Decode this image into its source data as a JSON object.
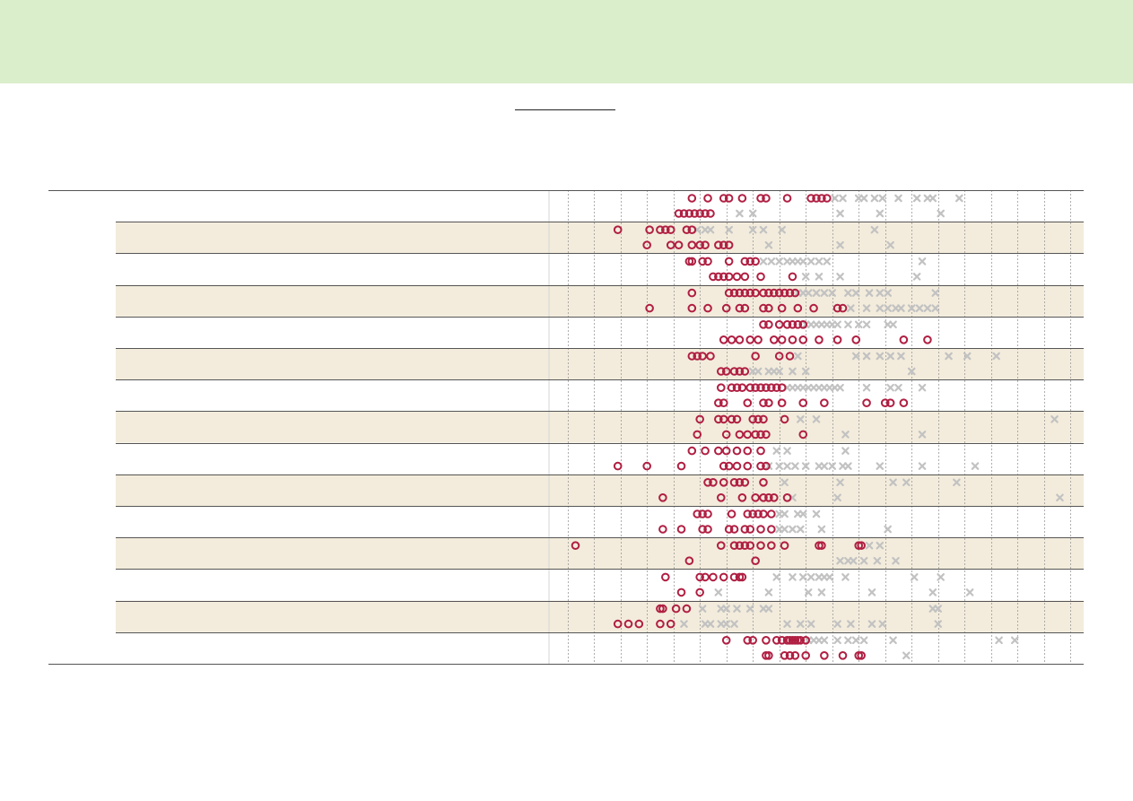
{
  "title": "",
  "colors": {
    "banner": "#daeecb",
    "band": "#f3ecdc",
    "circle": "#b01f42",
    "cross": "#c2c2c2",
    "row_rule": "#555555",
    "grid": "#9a9a9a"
  },
  "chart_data": {
    "type": "scatter",
    "title": "",
    "xlabel": "",
    "ylabel": "",
    "grid": true,
    "legend": "none",
    "x_gridlines": [
      0,
      1,
      2,
      3,
      4,
      5,
      6,
      7,
      8,
      9,
      10,
      11,
      12,
      13,
      14,
      15,
      16,
      17,
      18,
      19
    ],
    "xlim": [
      -0.7,
      19.5
    ],
    "row_labels": [
      "",
      "",
      "",
      "",
      "",
      "",
      "",
      "",
      "",
      "",
      "",
      "",
      "",
      "",
      ""
    ],
    "rows": [
      {
        "top": {
          "circles": [
            4.7,
            5.3,
            5.9,
            6.1,
            6.6,
            7.3,
            7.5,
            8.3,
            9.2,
            9.4,
            9.6,
            9.8
          ],
          "crosses": [
            10.1,
            10.4,
            11.0,
            11.2,
            11.6,
            11.9,
            12.5,
            13.2,
            13.6,
            13.8,
            14.8
          ]
        },
        "bottom": {
          "circles": [
            4.2,
            4.4,
            4.6,
            4.8,
            5.0,
            5.2,
            5.4
          ],
          "crosses": [
            6.5,
            7.0,
            10.3,
            11.8,
            14.1
          ]
        }
      },
      {
        "top": {
          "circles": [
            1.9,
            3.1,
            3.5,
            3.7,
            3.9,
            4.5,
            4.7
          ],
          "crosses": [
            4.9,
            5.2,
            5.4,
            6.1,
            7.0,
            7.4,
            8.1,
            11.6
          ]
        },
        "bottom": {
          "circles": [
            3.0,
            3.9,
            4.2,
            4.7,
            5.0,
            5.2,
            5.7,
            5.9,
            6.1
          ],
          "crosses": [
            7.6,
            10.3,
            12.2
          ]
        }
      },
      {
        "top": {
          "circles": [
            4.6,
            4.7,
            5.1,
            5.3,
            6.1,
            6.7,
            6.9,
            7.1
          ],
          "crosses": [
            7.4,
            7.7,
            8.0,
            8.3,
            8.5,
            8.7,
            8.9,
            9.2,
            9.5,
            9.8,
            13.4
          ]
        },
        "bottom": {
          "circles": [
            5.5,
            5.7,
            5.9,
            6.1,
            6.4,
            6.7,
            7.3,
            8.5
          ],
          "crosses": [
            9.0,
            9.5,
            10.3,
            13.2
          ]
        }
      },
      {
        "top": {
          "circles": [
            4.7,
            6.1,
            6.3,
            6.5,
            6.7,
            6.9,
            7.1,
            7.4,
            7.6,
            7.8,
            8.0,
            8.2,
            8.4,
            8.6
          ],
          "crosses": [
            8.7,
            8.9,
            9.1,
            9.4,
            9.7,
            10.0,
            10.6,
            10.9,
            11.4,
            11.8,
            12.1,
            13.9
          ]
        },
        "bottom": {
          "circles": [
            3.1,
            4.7,
            5.3,
            6.0,
            6.5,
            6.7,
            7.4,
            7.6,
            8.1,
            8.7,
            9.3,
            10.2,
            10.4
          ],
          "crosses": [
            10.7,
            11.3,
            11.8,
            12.1,
            12.4,
            12.6,
            13.0,
            13.3,
            13.6,
            13.9
          ]
        }
      },
      {
        "top": {
          "circles": [
            7.4,
            7.6,
            8.0,
            8.3,
            8.5,
            8.7,
            8.9
          ],
          "crosses": [
            9.0,
            9.2,
            9.4,
            9.6,
            9.8,
            10.0,
            10.2,
            10.6,
            11.0,
            11.3,
            12.1,
            12.3
          ]
        },
        "bottom": {
          "circles": [
            5.9,
            6.2,
            6.5,
            6.9,
            7.2,
            7.8,
            8.1,
            8.5,
            8.9,
            9.5,
            10.2,
            10.9,
            12.7,
            13.6
          ]
        }
      },
      {
        "top": {
          "circles": [
            4.7,
            4.9,
            5.1,
            5.4,
            7.1,
            8.0,
            8.4
          ],
          "crosses": [
            8.7,
            10.9,
            11.3,
            11.8,
            12.2,
            12.6,
            14.4,
            15.1,
            16.2
          ]
        },
        "bottom": {
          "circles": [
            5.8,
            6.0,
            6.3,
            6.5,
            6.7
          ],
          "crosses": [
            7.0,
            7.2,
            7.6,
            7.8,
            8.0,
            8.5,
            9.0,
            13.0
          ]
        }
      },
      {
        "top": {
          "circles": [
            5.8,
            6.2,
            6.4,
            6.6,
            6.9,
            7.1,
            7.3,
            7.5,
            7.7,
            7.9,
            8.1
          ],
          "crosses": [
            8.3,
            8.5,
            8.7,
            8.9,
            9.1,
            9.3,
            9.5,
            9.7,
            9.9,
            10.1,
            10.3,
            11.3,
            12.2,
            12.5,
            13.4
          ]
        },
        "bottom": {
          "circles": [
            5.7,
            5.9,
            6.8,
            7.4,
            7.6,
            8.1,
            8.9,
            9.7,
            11.3,
            12.0,
            12.2,
            12.7
          ]
        }
      },
      {
        "top": {
          "circles": [
            5.0,
            5.7,
            5.9,
            6.2,
            6.4,
            7.0,
            7.2,
            7.4,
            8.2
          ],
          "crosses": [
            8.8,
            9.4,
            18.4
          ]
        },
        "bottom": {
          "circles": [
            4.9,
            6.0,
            6.5,
            6.8,
            7.1,
            7.3,
            7.5,
            8.9
          ],
          "crosses": [
            10.5,
            13.4
          ]
        }
      },
      {
        "top": {
          "circles": [
            4.7,
            5.2,
            5.7,
            6.0,
            6.4,
            6.8,
            7.3
          ],
          "crosses": [
            7.9,
            8.3,
            10.5
          ]
        },
        "bottom": {
          "circles": [
            1.9,
            3.0,
            4.3,
            5.9,
            6.1,
            6.4,
            6.8,
            7.3,
            7.5
          ],
          "crosses": [
            7.6,
            8.0,
            8.3,
            8.6,
            9.0,
            9.5,
            9.7,
            10.0,
            10.4,
            10.6,
            11.8,
            13.4,
            15.4
          ]
        }
      },
      {
        "top": {
          "circles": [
            5.3,
            5.5,
            5.9,
            6.3,
            6.5,
            6.7,
            7.4
          ],
          "crosses": [
            8.2,
            10.3,
            12.3,
            12.8,
            14.7
          ]
        },
        "bottom": {
          "circles": [
            3.6,
            5.8,
            6.6,
            7.1,
            7.4,
            7.6,
            7.8,
            8.3
          ],
          "crosses": [
            8.5,
            10.2,
            18.6
          ]
        }
      },
      {
        "top": {
          "circles": [
            4.9,
            5.1,
            5.3,
            6.2,
            6.8,
            7.0,
            7.2,
            7.4,
            7.7
          ],
          "crosses": [
            8.0,
            8.2,
            8.7,
            8.9,
            9.4
          ]
        },
        "bottom": {
          "circles": [
            3.6,
            4.3,
            5.1,
            5.3,
            6.1,
            6.3,
            6.7,
            6.9,
            7.3,
            7.7
          ],
          "crosses": [
            8.0,
            8.2,
            8.5,
            8.8,
            9.6,
            12.1
          ]
        }
      },
      {
        "top": {
          "circles": [
            0.3,
            5.8,
            6.3,
            6.5,
            6.7,
            6.9,
            7.3,
            7.7,
            8.2,
            9.5,
            9.6,
            11.0,
            11.1
          ],
          "crosses": [
            11.4,
            11.8
          ]
        },
        "bottom": {
          "circles": [
            4.6,
            7.1
          ],
          "crosses": [
            10.3,
            10.6,
            10.8,
            11.2,
            11.7,
            12.4
          ]
        }
      },
      {
        "top": {
          "circles": [
            3.7,
            5.0,
            5.2,
            5.5,
            5.9,
            6.3,
            6.5,
            6.6
          ],
          "crosses": [
            7.9,
            8.5,
            8.9,
            9.2,
            9.5,
            9.7,
            9.9,
            10.5,
            13.1,
            14.1
          ]
        },
        "bottom": {
          "circles": [
            4.3,
            5.0
          ],
          "crosses": [
            5.7,
            7.6,
            9.1,
            9.6,
            11.5,
            13.8,
            15.2
          ]
        }
      },
      {
        "top": {
          "circles": [
            3.5,
            3.6,
            4.1,
            4.5
          ],
          "crosses": [
            5.1,
            5.8,
            6.0,
            6.4,
            6.9,
            7.4,
            7.6,
            13.8,
            14.0
          ]
        },
        "bottom": {
          "circles": [
            1.9,
            2.3,
            2.7,
            3.5,
            3.9
          ],
          "crosses": [
            4.4,
            5.2,
            5.4,
            5.8,
            6.0,
            6.3,
            8.3,
            8.8,
            9.2,
            10.2,
            10.7,
            11.5,
            11.9,
            14.0
          ]
        }
      },
      {
        "top": {
          "circles": [
            6.0,
            6.8,
            7.0,
            7.5,
            7.9,
            8.1,
            8.3,
            8.4,
            8.5,
            8.6,
            8.7,
            8.8,
            9.0
          ],
          "crosses": [
            9.1,
            9.3,
            9.5,
            9.7,
            10.2,
            10.6,
            10.9,
            11.2,
            12.3,
            16.3,
            16.9
          ]
        },
        "bottom": {
          "circles": [
            7.5,
            7.6,
            8.2,
            8.4,
            8.6,
            9.0,
            9.7,
            10.4,
            11.0,
            11.1
          ],
          "crosses": [
            12.8
          ]
        }
      }
    ]
  }
}
